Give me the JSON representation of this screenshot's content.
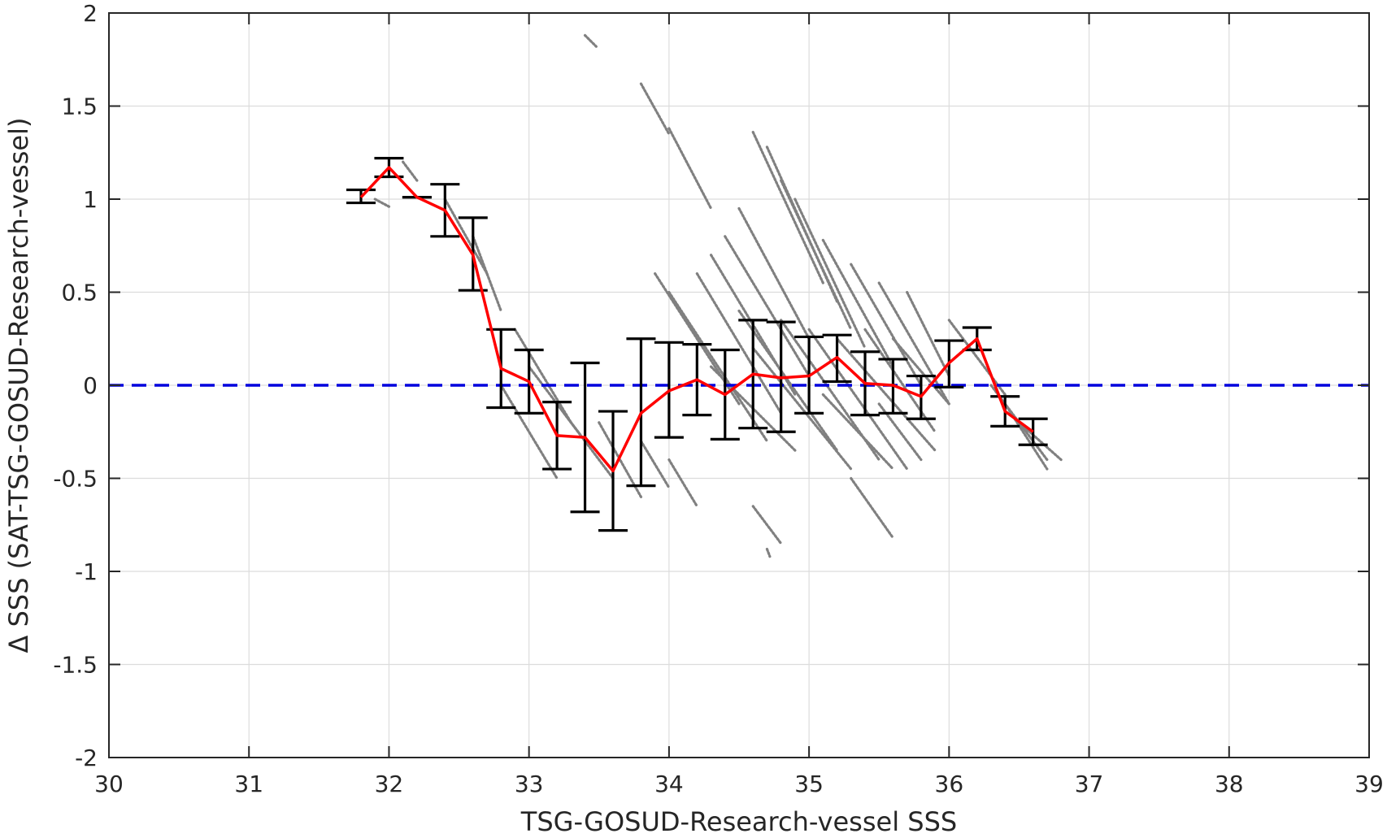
{
  "chart_data": {
    "type": "scatter",
    "title": "",
    "xlabel": "TSG-GOSUD-Research-vessel SSS",
    "ylabel": "Δ SSS (SAT-TSG-GOSUD-Research-vessel)",
    "xlim": [
      30,
      39
    ],
    "ylim": [
      -2,
      2
    ],
    "x_ticks": [
      30,
      31,
      32,
      33,
      34,
      35,
      36,
      37,
      38,
      39
    ],
    "y_ticks": [
      2,
      1.5,
      1,
      0.5,
      0,
      -0.5,
      -1,
      -1.5,
      -2
    ],
    "grid": true,
    "legend": "none",
    "colors": {
      "scatter": "#808080",
      "mean_line": "#ff0000",
      "error_bars": "#000000",
      "zero_line": "#0000dd",
      "axes": "#262626",
      "grid": "#dcdcdc"
    },
    "zero_line": {
      "y": 0,
      "style": "dashed"
    },
    "mean_series": {
      "x": [
        31.8,
        32.0,
        32.2,
        32.4,
        32.6,
        32.8,
        33.0,
        33.2,
        33.4,
        33.6,
        33.8,
        34.0,
        34.2,
        34.4,
        34.6,
        34.8,
        35.0,
        35.2,
        35.4,
        35.6,
        35.8,
        36.0,
        36.2,
        36.4,
        36.6
      ],
      "y": [
        1.01,
        1.17,
        1.01,
        0.94,
        0.7,
        0.09,
        0.02,
        -0.27,
        -0.28,
        -0.46,
        -0.15,
        -0.03,
        0.03,
        -0.05,
        0.06,
        0.04,
        0.05,
        0.15,
        0.01,
        0.0,
        -0.06,
        0.12,
        0.25,
        -0.14,
        -0.25
      ],
      "err_low": [
        0.98,
        1.12,
        1.01,
        0.8,
        0.51,
        -0.12,
        -0.15,
        -0.45,
        -0.68,
        -0.78,
        -0.54,
        -0.28,
        -0.16,
        -0.29,
        -0.23,
        -0.25,
        -0.15,
        0.02,
        -0.16,
        -0.15,
        -0.18,
        -0.01,
        0.19,
        -0.22,
        -0.32
      ],
      "err_high": [
        1.05,
        1.22,
        1.01,
        1.08,
        0.9,
        0.3,
        0.19,
        -0.09,
        0.12,
        -0.14,
        0.25,
        0.23,
        0.22,
        0.19,
        0.35,
        0.34,
        0.26,
        0.27,
        0.18,
        0.14,
        0.05,
        0.24,
        0.31,
        -0.06,
        -0.18
      ]
    },
    "scatter_segments": [
      [
        33.4,
        1.88,
        33.48,
        1.82
      ],
      [
        33.8,
        1.62,
        34.0,
        1.35
      ],
      [
        34.0,
        1.38,
        34.3,
        0.95
      ],
      [
        34.6,
        1.36,
        35.1,
        0.55
      ],
      [
        34.7,
        1.28,
        35.2,
        0.45
      ],
      [
        34.8,
        1.1,
        35.3,
        0.3
      ],
      [
        34.9,
        1.0,
        35.4,
        0.2
      ],
      [
        34.5,
        0.95,
        35.0,
        0.25
      ],
      [
        34.4,
        0.8,
        35.0,
        0.05
      ],
      [
        34.3,
        0.7,
        34.9,
        -0.05
      ],
      [
        34.2,
        0.6,
        34.8,
        -0.15
      ],
      [
        35.1,
        0.78,
        35.6,
        0.1
      ],
      [
        35.3,
        0.65,
        35.8,
        0.0
      ],
      [
        35.5,
        0.55,
        36.0,
        -0.1
      ],
      [
        35.7,
        0.5,
        36.0,
        0.05
      ],
      [
        33.9,
        0.6,
        34.5,
        -0.1
      ],
      [
        34.0,
        0.5,
        34.7,
        -0.3
      ],
      [
        34.5,
        0.4,
        35.2,
        -0.35
      ],
      [
        34.8,
        0.35,
        35.5,
        -0.4
      ],
      [
        35.0,
        0.3,
        35.7,
        -0.45
      ],
      [
        35.2,
        0.25,
        35.9,
        -0.35
      ],
      [
        35.4,
        0.3,
        35.9,
        -0.25
      ],
      [
        35.6,
        0.25,
        36.0,
        -0.1
      ],
      [
        34.6,
        0.2,
        35.3,
        -0.45
      ],
      [
        34.3,
        0.1,
        34.9,
        -0.35
      ],
      [
        35.1,
        -0.05,
        35.6,
        -0.45
      ],
      [
        35.5,
        -0.1,
        35.8,
        -0.4
      ],
      [
        35.3,
        -0.5,
        35.6,
        -0.82
      ],
      [
        34.6,
        -0.65,
        34.8,
        -0.85
      ],
      [
        34.7,
        -0.88,
        34.72,
        -0.92
      ],
      [
        33.8,
        -0.3,
        34.0,
        -0.55
      ],
      [
        34.0,
        -0.4,
        34.2,
        -0.65
      ],
      [
        33.5,
        -0.2,
        33.8,
        -0.6
      ],
      [
        32.6,
        0.8,
        32.8,
        0.4
      ],
      [
        32.4,
        1.0,
        32.7,
        0.6
      ],
      [
        32.8,
        0.0,
        33.2,
        -0.5
      ],
      [
        32.9,
        0.3,
        33.3,
        -0.2
      ],
      [
        33.0,
        0.1,
        33.4,
        -0.3
      ],
      [
        33.2,
        -0.1,
        33.6,
        -0.5
      ],
      [
        36.0,
        0.35,
        36.4,
        -0.05
      ],
      [
        36.3,
        0.0,
        36.7,
        -0.4
      ],
      [
        36.4,
        -0.1,
        36.7,
        -0.45
      ],
      [
        36.5,
        -0.2,
        36.8,
        -0.4
      ],
      [
        31.9,
        1.0,
        32.0,
        0.96
      ],
      [
        32.1,
        1.2,
        32.2,
        1.1
      ]
    ]
  }
}
